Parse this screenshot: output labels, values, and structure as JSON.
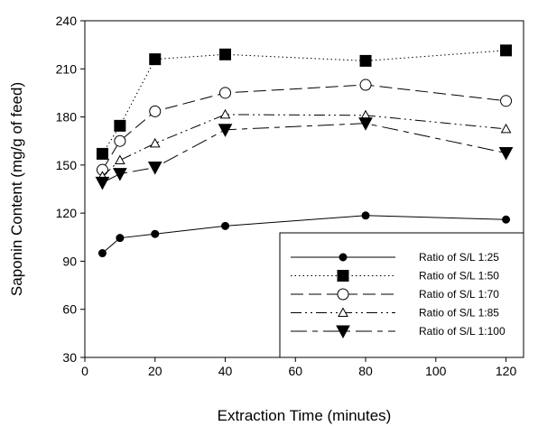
{
  "chart_data": {
    "type": "line",
    "title": "",
    "xlabel": "Extraction Time (minutes)",
    "ylabel": "Saponin Content (mg/g of feed)",
    "xlim": [
      0,
      125
    ],
    "ylim": [
      30,
      240
    ],
    "x_ticks": [
      0,
      20,
      40,
      60,
      80,
      100,
      120
    ],
    "y_ticks": [
      30,
      60,
      90,
      120,
      150,
      180,
      210,
      240
    ],
    "x": [
      5,
      10,
      20,
      40,
      80,
      120
    ],
    "grid": false,
    "legend_position": "bottom-right",
    "series": [
      {
        "name": "Ratio of S/L 1:25",
        "marker": "filled-circle",
        "line": "solid",
        "values": [
          95,
          104.5,
          107,
          112,
          118.5,
          116
        ]
      },
      {
        "name": "Ratio of S/L 1:50",
        "marker": "filled-square",
        "line": "dotted",
        "values": [
          157,
          174.5,
          216,
          219,
          215,
          221.5
        ]
      },
      {
        "name": "Ratio of S/L 1:70",
        "marker": "open-circle",
        "line": "long-dash",
        "values": [
          147,
          165,
          183.5,
          195,
          200,
          190
        ]
      },
      {
        "name": "Ratio of S/L 1:85",
        "marker": "open-triangle",
        "line": "dash-dot-dot",
        "values": [
          143,
          153,
          163.5,
          181.5,
          181,
          172.5
        ]
      },
      {
        "name": "Ratio of S/L 1:100",
        "marker": "filled-triangle-down",
        "line": "long-dash-short",
        "values": [
          139,
          144.5,
          148.5,
          172,
          176,
          157.5
        ]
      }
    ]
  }
}
